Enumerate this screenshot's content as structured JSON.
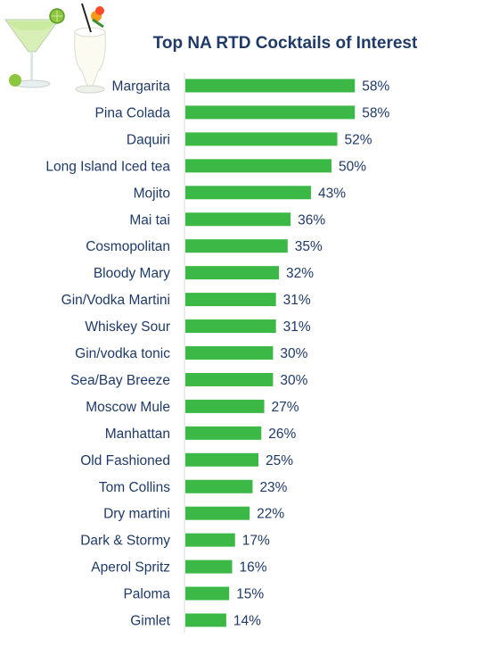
{
  "chart_data": {
    "type": "bar",
    "orientation": "horizontal",
    "title": "Top NA RTD Cocktails of Interest",
    "categories": [
      "Margarita",
      "Pina Colada",
      "Daquiri",
      "Long Island Iced tea",
      "Mojito",
      "Mai tai",
      "Cosmopolitan",
      "Bloody Mary",
      "Gin/Vodka Martini",
      "Whiskey Sour",
      "Gin/vodka tonic",
      "Sea/Bay Breeze",
      "Moscow Mule",
      "Manhattan",
      "Old Fashioned",
      "Tom Collins",
      "Dry martini",
      "Dark & Stormy",
      "Aperol Spritz",
      "Paloma",
      "Gimlet"
    ],
    "values": [
      58,
      58,
      52,
      50,
      43,
      36,
      35,
      32,
      31,
      31,
      30,
      30,
      27,
      26,
      25,
      23,
      22,
      17,
      16,
      15,
      14
    ],
    "value_suffix": "%",
    "xlim": [
      0,
      100
    ],
    "grid": false,
    "legend": "none",
    "colors": {
      "bar": "#3cb846",
      "category_text": "#1f3a68",
      "value_text": "#1f3a68",
      "axis": "#d9d9d9"
    }
  },
  "illustration": {
    "icon": "cocktail-glasses-icon"
  }
}
